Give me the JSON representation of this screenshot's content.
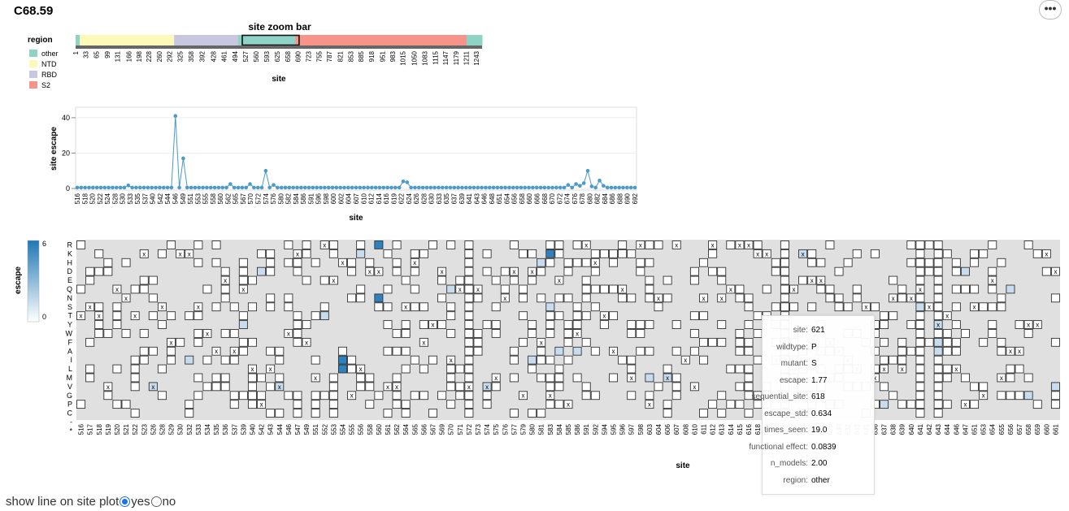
{
  "page": {
    "title": "C68.59",
    "menu_label": "•••"
  },
  "controls": {
    "label": "show line on site plot",
    "opt_yes": "yes",
    "opt_no": "no",
    "selected": "yes"
  },
  "zoom": {
    "title": "site zoom bar",
    "legend_title": "region",
    "xlabel": "site",
    "regions": [
      {
        "name": "other",
        "color": "#8fd3c6",
        "start": 1,
        "end": 13
      },
      {
        "name": "NTD",
        "color": "#fdf9b8",
        "start": 14,
        "end": 305
      },
      {
        "name": "RBD",
        "color": "#c9c7e0",
        "start": 306,
        "end": 503
      },
      {
        "name": "other",
        "color": "#8fd3c6",
        "start": 504,
        "end": 681
      },
      {
        "name": "S2",
        "color": "#f6948a",
        "start": 682,
        "end": 1211
      },
      {
        "name": "other",
        "color": "#8fd3c6",
        "start": 1212,
        "end": 1260
      }
    ],
    "legend": [
      {
        "name": "other",
        "color": "#8fd3c6"
      },
      {
        "name": "NTD",
        "color": "#fdf9b8"
      },
      {
        "name": "RBD",
        "color": "#c9c7e0"
      },
      {
        "name": "S2",
        "color": "#f6948a"
      }
    ],
    "selection": [
      516,
      692
    ],
    "ticks": [
      "1",
      "33",
      "65",
      "99",
      "131",
      "166",
      "198",
      "228",
      "260",
      "292",
      "325",
      "358",
      "392",
      "428",
      "461",
      "494",
      "527",
      "560",
      "593",
      "625",
      "658",
      "690",
      "723",
      "755",
      "787",
      "821",
      "853",
      "885",
      "918",
      "951",
      "983",
      "1015",
      "1050",
      "1083",
      "1115",
      "1147",
      "1179",
      "1211",
      "1243"
    ]
  },
  "chart_data": [
    {
      "type": "line",
      "ylabel": "site escape",
      "xlabel": "site",
      "ylim": [
        0,
        45
      ],
      "yticks": [
        "0",
        "20",
        "40"
      ],
      "xticks": [
        "516",
        "518",
        "520",
        "522",
        "524",
        "528",
        "530",
        "533",
        "535",
        "537",
        "540",
        "542",
        "544",
        "546",
        "549",
        "551",
        "553",
        "555",
        "558",
        "560",
        "562",
        "565",
        "567",
        "570",
        "572",
        "574",
        "576",
        "580",
        "582",
        "584",
        "586",
        "591",
        "596",
        "598",
        "600",
        "602",
        "604",
        "607",
        "610",
        "612",
        "614",
        "616",
        "619",
        "622",
        "624",
        "626",
        "628",
        "630",
        "633",
        "635",
        "637",
        "639",
        "641",
        "643",
        "646",
        "648",
        "651",
        "654",
        "656",
        "658",
        "660",
        "666",
        "668",
        "670",
        "672",
        "674",
        "676",
        "678",
        "680",
        "682",
        "684",
        "686",
        "688",
        "690",
        "692"
      ],
      "points": [
        0.5,
        0.5,
        0.5,
        0.5,
        0.5,
        0.5,
        0.5,
        0.5,
        0.5,
        0.5,
        0.5,
        0.5,
        0.5,
        1.7,
        0.5,
        0.5,
        0.5,
        0.5,
        0.5,
        0.5,
        0.5,
        0.5,
        0.5,
        0.5,
        0.5,
        41,
        0.5,
        17,
        0.5,
        0.5,
        0.5,
        0.5,
        0.5,
        0.5,
        0.5,
        0.5,
        0.5,
        0.5,
        0.5,
        2.5,
        0.5,
        0.5,
        0.5,
        0.5,
        2.5,
        0.5,
        0.5,
        0.5,
        10,
        0.5,
        2,
        0.5,
        0.5,
        0.5,
        0.5,
        0.5,
        0.5,
        0.5,
        0.5,
        0.5,
        0.5,
        0.5,
        0.5,
        0.5,
        0.5,
        0.5,
        0.5,
        0.5,
        0.5,
        0.5,
        0.5,
        0.5,
        0.5,
        0.5,
        0.5,
        0.5,
        0.5,
        0.5,
        0.5,
        0.5,
        0.5,
        0.5,
        0.5,
        4,
        3.5,
        0.5,
        0.5,
        0.5,
        0.5,
        0.5,
        0.5,
        0.5,
        0.5,
        0.5,
        0.5,
        0.5,
        0.5,
        0.5,
        0.5,
        0.5,
        0.5,
        0.5,
        0.5,
        0.5,
        0.5,
        0.5,
        0.5,
        0.5,
        0.5,
        0.5,
        0.5,
        0.5,
        0.5,
        0.5,
        0.5,
        0.5,
        0.5,
        0.5,
        0.5,
        0.5,
        0.5,
        0.5,
        0.5,
        0.5,
        0.5,
        2,
        0.5,
        2.5,
        1.5,
        3,
        10,
        1.2,
        0.5,
        4.5,
        1.5,
        0.5,
        0.5,
        0.5,
        0.5,
        0.5,
        0.5,
        0.5,
        0.5
      ]
    },
    {
      "type": "heatmap",
      "ylabel": "escape",
      "xlabel": "site",
      "color_scale": {
        "min": 0,
        "max": 6,
        "low": "#ffffff",
        "high": "#1f77b4"
      },
      "mutants": [
        "R",
        "K",
        "H",
        "D",
        "E",
        "Q",
        "N",
        "S",
        "T",
        "Y",
        "W",
        "F",
        "A",
        "I",
        "L",
        "M",
        "V",
        "G",
        "P",
        "C",
        "-",
        "*"
      ],
      "sites": [
        "516",
        "517",
        "518",
        "519",
        "520",
        "521",
        "522",
        "523",
        "526",
        "528",
        "529",
        "530",
        "532",
        "533",
        "534",
        "535",
        "536",
        "537",
        "539",
        "540",
        "542",
        "543",
        "544",
        "546",
        "547",
        "549",
        "551",
        "552",
        "553",
        "554",
        "555",
        "556",
        "558",
        "560",
        "561",
        "562",
        "564",
        "565",
        "566",
        "567",
        "569",
        "570",
        "571",
        "572",
        "573",
        "574",
        "575",
        "576",
        "577",
        "579",
        "580",
        "581",
        "583",
        "584",
        "585",
        "586",
        "591",
        "592",
        "594",
        "595",
        "596",
        "597",
        "598",
        "603",
        "604",
        "606",
        "607",
        "608",
        "610",
        "611",
        "612",
        "613",
        "614",
        "615",
        "616",
        "618",
        "619",
        "620",
        "621",
        "622",
        "624",
        "626",
        "627",
        "628",
        "630",
        "632",
        "633",
        "635",
        "636",
        "637",
        "638",
        "639",
        "640",
        "641",
        "642",
        "643",
        "644",
        "646",
        "647",
        "651",
        "653",
        "654",
        "655",
        "656",
        "657",
        "658",
        "659",
        "660",
        "661"
      ],
      "wildtype_column_markers": "x",
      "tooltip": {
        "site": "621",
        "wildtype": "P",
        "mutant": "S",
        "escape": "1.77",
        "sequential_site": "618",
        "escape_std": "0.634",
        "times_seen": "19.0",
        "functional effect:": "0.0839",
        "n_models": "2.00",
        "region": "other"
      }
    }
  ],
  "tooltip_rows": [
    {
      "k": "site:",
      "v": "621"
    },
    {
      "k": "wildtype:",
      "v": "P"
    },
    {
      "k": "mutant:",
      "v": "S"
    },
    {
      "k": "escape:",
      "v": "1.77"
    },
    {
      "k": "sequential_site:",
      "v": "618"
    },
    {
      "k": "escape_std:",
      "v": "0.634"
    },
    {
      "k": "times_seen:",
      "v": "19.0"
    },
    {
      "k": "functional effect:",
      "v": "0.0839"
    },
    {
      "k": "n_models:",
      "v": "2.00"
    },
    {
      "k": "region:",
      "v": "other"
    }
  ]
}
